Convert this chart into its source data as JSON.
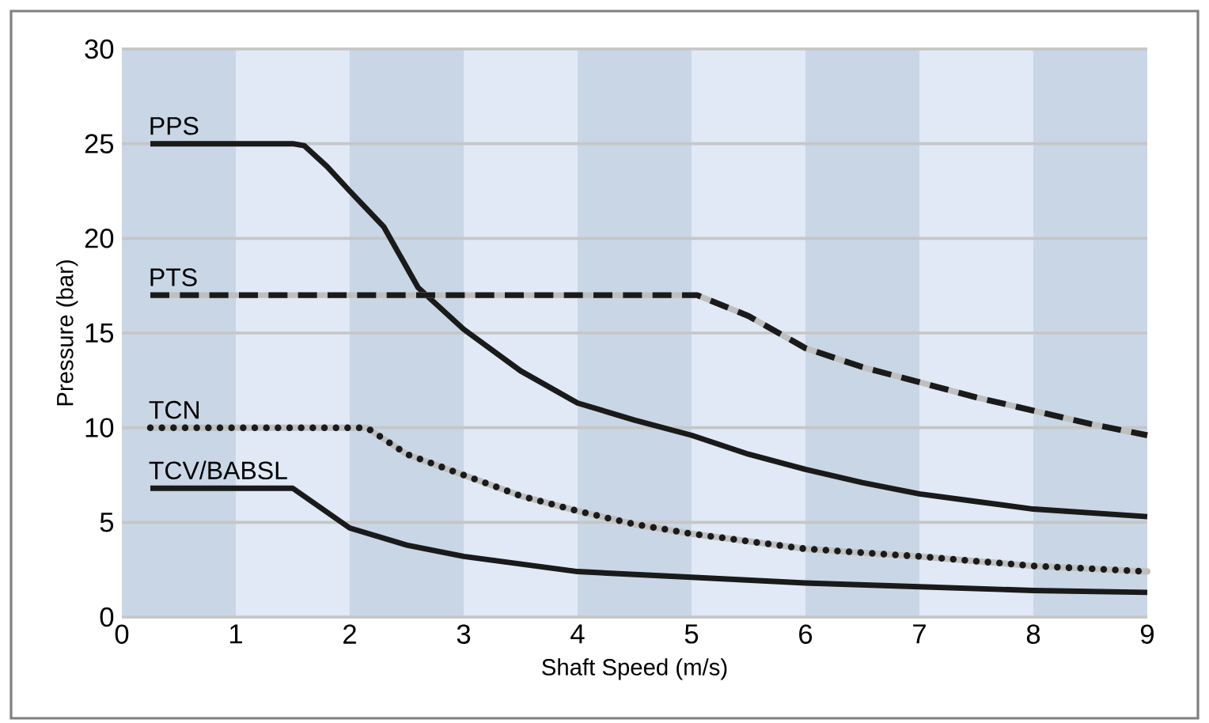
{
  "chart_data": {
    "type": "line",
    "xlabel": "Shaft Speed (m/s)",
    "ylabel": "Pressure (bar)",
    "xlim": [
      0,
      9
    ],
    "ylim": [
      0,
      30
    ],
    "xticks": [
      0,
      1,
      2,
      3,
      4,
      5,
      6,
      7,
      8,
      9
    ],
    "yticks": [
      0,
      5,
      10,
      15,
      20,
      25,
      30
    ],
    "grid": "y",
    "marker": "none",
    "bands": [
      {
        "axis": "x",
        "from": 0,
        "to": 1,
        "color": "#c9d6e6"
      },
      {
        "axis": "x",
        "from": 2,
        "to": 3,
        "color": "#c9d6e6"
      },
      {
        "axis": "x",
        "from": 4,
        "to": 5,
        "color": "#c9d6e6"
      },
      {
        "axis": "x",
        "from": 6,
        "to": 7,
        "color": "#c9d6e6"
      },
      {
        "axis": "x",
        "from": 8,
        "to": 9,
        "color": "#c9d6e6"
      }
    ],
    "series": [
      {
        "name": "PPS",
        "color": "#1a1a1a",
        "line_style": "solid",
        "x": [
          0.25,
          1.5,
          1.6,
          1.8,
          2,
          2.3,
          2.6,
          3,
          3.5,
          4,
          4.5,
          5,
          5.5,
          6,
          6.5,
          7,
          7.5,
          8,
          8.5,
          9
        ],
        "values": [
          25,
          25,
          24.9,
          23.8,
          22.5,
          20.6,
          17.4,
          15.2,
          13,
          11.3,
          10.4,
          9.6,
          8.6,
          7.8,
          7.1,
          6.5,
          6.1,
          5.7,
          5.5,
          5.3
        ]
      },
      {
        "name": "PTS",
        "color": "#1a1a1a",
        "line_style": "dashed",
        "x": [
          0.25,
          5.05,
          5.5,
          6,
          6.5,
          7,
          7.5,
          8,
          8.5,
          9
        ],
        "values": [
          17,
          17,
          15.9,
          14.2,
          13.2,
          12.4,
          11.6,
          10.9,
          10.2,
          9.6
        ]
      },
      {
        "name": "TCN",
        "color": "#1a1a1a",
        "line_style": "dotted",
        "x": [
          0.25,
          2.15,
          2.5,
          3,
          3.5,
          4,
          4.5,
          5,
          6,
          7,
          8,
          9
        ],
        "values": [
          10,
          10,
          8.6,
          7.5,
          6.4,
          5.6,
          4.9,
          4.4,
          3.6,
          3.2,
          2.7,
          2.4
        ]
      },
      {
        "name": "TCV/BABSL",
        "color": "#1a1a1a",
        "line_style": "solid",
        "x": [
          0.25,
          1.5,
          2,
          2.5,
          3,
          4,
          5,
          6,
          7,
          8,
          9
        ],
        "values": [
          6.8,
          6.8,
          4.7,
          3.8,
          3.2,
          2.4,
          2.1,
          1.8,
          1.6,
          1.4,
          1.3
        ]
      }
    ]
  }
}
